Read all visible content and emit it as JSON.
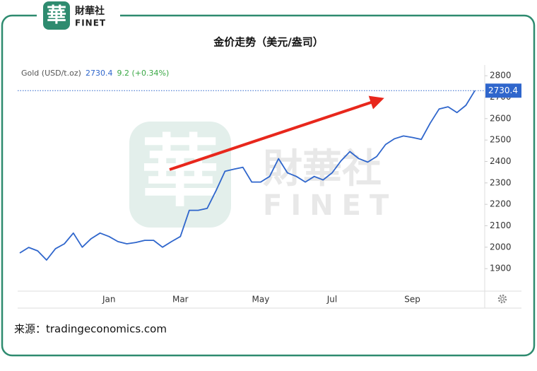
{
  "logo": {
    "mark": "華",
    "name": "財華社",
    "en": "FINET"
  },
  "chart_data": {
    "type": "line",
    "title": "金价走势（美元/盎司）",
    "categories": [
      null,
      null,
      null,
      null,
      null,
      null,
      null,
      null,
      null,
      null,
      "Jan",
      null,
      null,
      null,
      null,
      null,
      null,
      null,
      "Mar",
      null,
      null,
      null,
      null,
      null,
      null,
      null,
      null,
      "May",
      null,
      null,
      null,
      null,
      null,
      null,
      null,
      "Jul",
      null,
      null,
      null,
      null,
      null,
      null,
      null,
      null,
      "Sep",
      null,
      null,
      null,
      null,
      null,
      null,
      null
    ],
    "series": [
      {
        "name": "Gold (USD/t.oz)",
        "color": "#2f66cc",
        "values": [
          1973,
          1999,
          1983,
          1940,
          1993,
          2016,
          2066,
          2000,
          2040,
          2066,
          2050,
          2026,
          2016,
          2022,
          2032,
          2032,
          2000,
          2026,
          2050,
          2172,
          2172,
          2181,
          2264,
          2354,
          2364,
          2373,
          2304,
          2304,
          2330,
          2413,
          2347,
          2330,
          2304,
          2330,
          2314,
          2347,
          2403,
          2446,
          2413,
          2397,
          2423,
          2479,
          2506,
          2519,
          2512,
          2503,
          2579,
          2645,
          2655,
          2628,
          2662,
          2730.4
        ]
      }
    ],
    "change": "9.2 (+0.34%)",
    "ylim": [
      1795,
      2850
    ],
    "yticks": [
      1900,
      2000,
      2100,
      2200,
      2300,
      2400,
      2500,
      2600,
      2700,
      2800
    ]
  },
  "source": "来源：tradingeconomics.com"
}
